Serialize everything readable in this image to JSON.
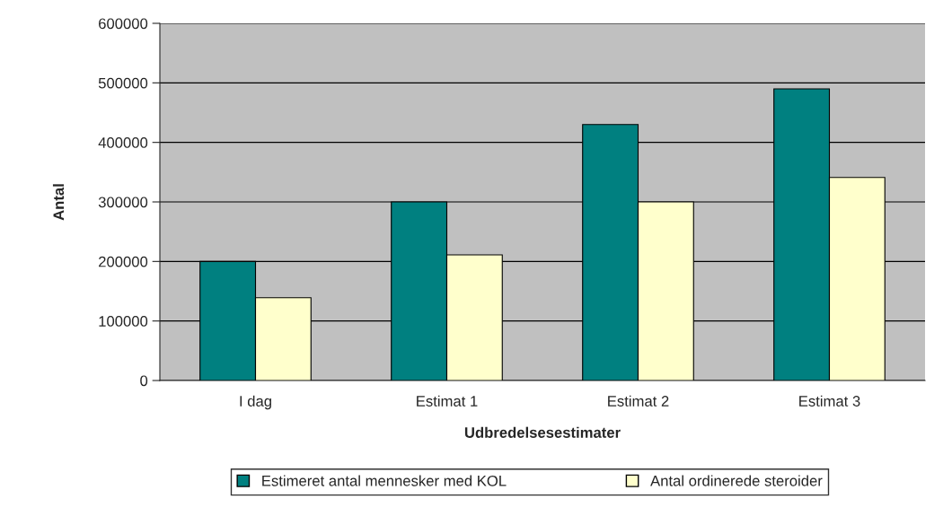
{
  "chart_data": {
    "type": "bar",
    "xlabel": "Udbredelsesestimater",
    "ylabel": "Antal",
    "categories": [
      "I dag",
      "Estimat 1",
      "Estimat 2",
      "Estimat 3"
    ],
    "series": [
      {
        "name": "Estimeret antal mennesker med KOL",
        "color": "#008080",
        "values": [
          200000,
          300000,
          430000,
          490000
        ]
      },
      {
        "name": "Antal ordinerede steroider",
        "color": "#ffffcc",
        "values": [
          139000,
          211000,
          300000,
          341000
        ]
      }
    ],
    "ylim": [
      0,
      600000
    ],
    "yticks": [
      0,
      100000,
      200000,
      300000,
      400000,
      500000,
      600000
    ],
    "grid": "y",
    "legend": "bottom"
  }
}
